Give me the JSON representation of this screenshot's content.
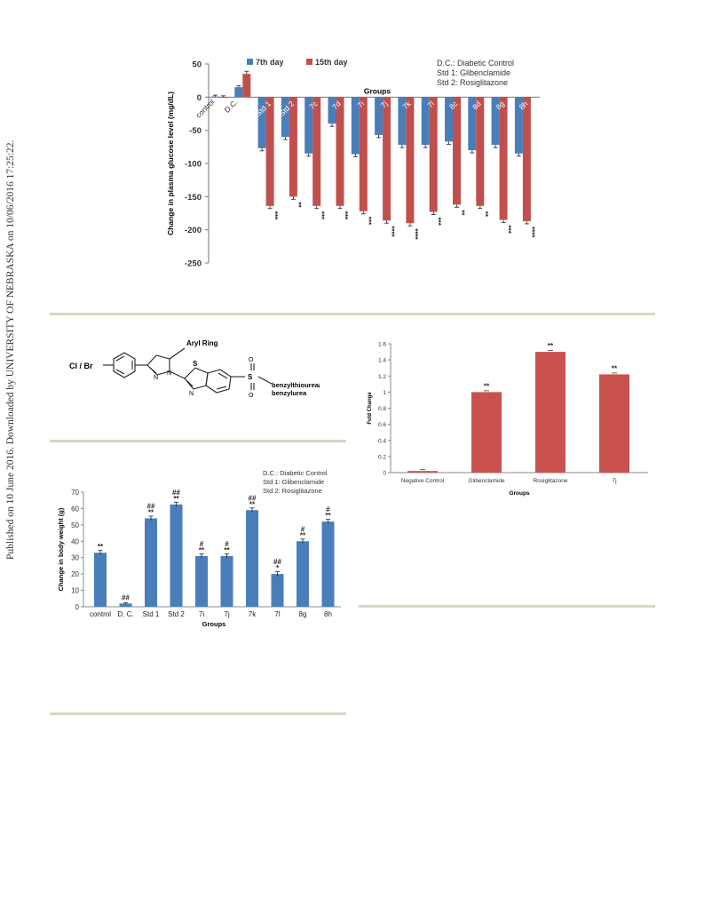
{
  "watermark": "Published on 10 June 2016. Downloaded by UNIVERSITY OF NEBRASKA on 10/06/2016 17:25:22.",
  "colors": {
    "blue": "#4a7ebb",
    "red": "#c0504d",
    "red2": "#c9524f",
    "rule": "#d9d6bf"
  },
  "chart_data": [
    {
      "type": "bar",
      "ylabel": "Change in plasma glucose level (mg/dL)",
      "xlabel": "Groups",
      "ylim": [
        -250,
        50
      ],
      "yticks": [
        50,
        0,
        -50,
        -100,
        -150,
        -200,
        -250
      ],
      "categories": [
        "control",
        "D.C.",
        "Std 1",
        "Std 2",
        "7c",
        "7d",
        "7i",
        "7j",
        "7k",
        "7l",
        "8c",
        "8d",
        "8g",
        "8h"
      ],
      "series": [
        {
          "name": "7th day",
          "values": [
            1,
            15,
            -77,
            -60,
            -85,
            -40,
            -86,
            -57,
            -72,
            -72,
            -67,
            -80,
            -72,
            -85
          ],
          "marks": [
            "",
            "",
            "**",
            "**",
            "**",
            "**",
            "**",
            "**",
            "**",
            "**",
            "**",
            "**",
            "**",
            "**"
          ]
        },
        {
          "name": "15th day",
          "values": [
            0,
            35,
            -164,
            -150,
            -164,
            -164,
            -172,
            -186,
            -190,
            -173,
            -162,
            -164,
            -185,
            -187
          ],
          "marks": [
            "",
            "",
            "***",
            "**",
            "***",
            "***",
            "***",
            "****",
            "****",
            "***",
            "**",
            "**",
            "***",
            "****"
          ]
        }
      ],
      "legend_position": "top-left",
      "notes": [
        "D.C.: Diabetic Control",
        "Std 1: Glibenclamide",
        "Std 2: Rosiglitazone"
      ]
    },
    {
      "type": "bar",
      "ylabel": "Fold Change",
      "xlabel": "Groups",
      "ylim": [
        0,
        1.6
      ],
      "yticks": [
        0,
        0.2,
        0.4,
        0.6,
        0.8,
        1,
        1.2,
        1.4,
        1.6
      ],
      "categories": [
        "Negative Control",
        "Glibenclamide",
        "Rosiglitazone",
        "7j"
      ],
      "values": [
        0.02,
        1.0,
        1.5,
        1.22
      ],
      "marks": [
        "",
        "**",
        "**",
        "**"
      ]
    },
    {
      "type": "bar",
      "ylabel": "Change in body weight (g)",
      "xlabel": "Groups",
      "ylim": [
        0,
        70
      ],
      "yticks": [
        0,
        10,
        20,
        30,
        40,
        50,
        60,
        70
      ],
      "categories": [
        "control",
        "D. C.",
        "Std 1",
        "Std 2",
        "7i",
        "7j",
        "7k",
        "7l",
        "8g",
        "8h"
      ],
      "values": [
        33,
        2,
        54,
        62.5,
        31,
        31,
        59,
        20,
        40,
        52
      ],
      "marks_top": [
        "",
        "",
        "##",
        "##",
        "#",
        "#",
        "##",
        "##",
        "#",
        "#"
      ],
      "marks_bottom": [
        "**",
        "##",
        "**",
        "**",
        "**",
        "**",
        "**",
        "*",
        "**",
        "**"
      ],
      "notes": [
        "D.C.: Diabetic Control",
        "Std 1: Glibenclamide",
        "Std 2: Rosiglitazone"
      ]
    }
  ],
  "structure": {
    "labels": {
      "aryl": "Aryl Ring",
      "halogen": "Cl / Br",
      "s": "S",
      "n1": "N",
      "n2": "N",
      "n3": "N",
      "o1": "O",
      "o2": "O",
      "s2": "S"
    },
    "substituent": [
      "benzylthiourea/",
      "benzylurea"
    ]
  }
}
